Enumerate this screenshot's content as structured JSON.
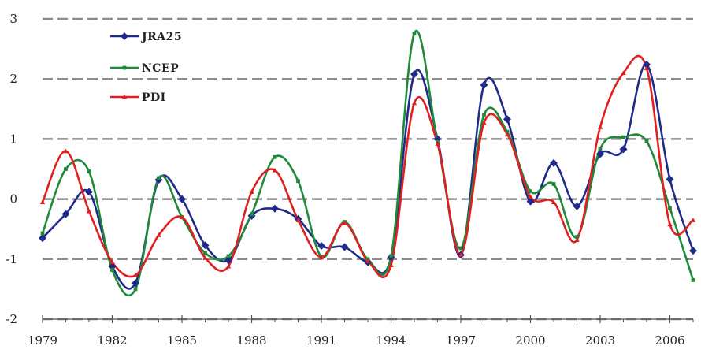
{
  "chart_data": {
    "type": "line",
    "title": "",
    "xlabel": "",
    "ylabel": "",
    "xlim": [
      1979,
      2007
    ],
    "ylim": [
      -2,
      3
    ],
    "x_ticks": [
      1979,
      1982,
      1985,
      1988,
      1991,
      1994,
      1997,
      2000,
      2003,
      2006
    ],
    "y_ticks": [
      3,
      2,
      1,
      0,
      -1,
      -2
    ],
    "grid": "horizontal dashed",
    "legend_position": "top-left",
    "x": [
      1979,
      1980,
      1981,
      1982,
      1983,
      1984,
      1985,
      1986,
      1987,
      1988,
      1989,
      1990,
      1991,
      1992,
      1993,
      1994,
      1995,
      1996,
      1997,
      1998,
      1999,
      2000,
      2001,
      2002,
      2003,
      2004,
      2005,
      2006,
      2007
    ],
    "series": [
      {
        "name": "JRA25",
        "color": "#1f2a8a",
        "marker": "diamond",
        "values": [
          -0.65,
          -0.25,
          0.12,
          -1.12,
          -1.4,
          0.32,
          0.0,
          -0.77,
          -1.02,
          -0.28,
          -0.16,
          -0.33,
          -0.78,
          -0.8,
          -1.05,
          -0.97,
          2.08,
          1.0,
          -0.93,
          1.9,
          1.33,
          -0.04,
          0.6,
          -0.12,
          0.75,
          0.83,
          2.24,
          0.33,
          -0.86
        ]
      },
      {
        "name": "NCEP",
        "color": "#1f8a3a",
        "marker": "square",
        "values": [
          -0.57,
          0.5,
          0.46,
          -1.18,
          -1.5,
          0.35,
          -0.3,
          -0.9,
          -0.95,
          -0.25,
          0.7,
          0.3,
          -0.96,
          -0.38,
          -1.0,
          -0.95,
          2.76,
          0.95,
          -0.82,
          1.4,
          1.12,
          0.13,
          0.25,
          -0.63,
          0.84,
          1.03,
          0.96,
          -0.15,
          -1.35
        ]
      },
      {
        "name": "PDI",
        "color": "#e02020",
        "marker": "triangle",
        "values": [
          -0.05,
          0.8,
          -0.2,
          -1.05,
          -1.27,
          -0.6,
          -0.3,
          -0.98,
          -1.12,
          0.12,
          0.48,
          -0.35,
          -0.97,
          -0.4,
          -1.03,
          -1.1,
          1.6,
          0.92,
          -0.93,
          1.27,
          1.08,
          0.04,
          -0.05,
          -0.68,
          1.2,
          2.1,
          2.18,
          -0.42,
          -0.35
        ]
      }
    ]
  }
}
